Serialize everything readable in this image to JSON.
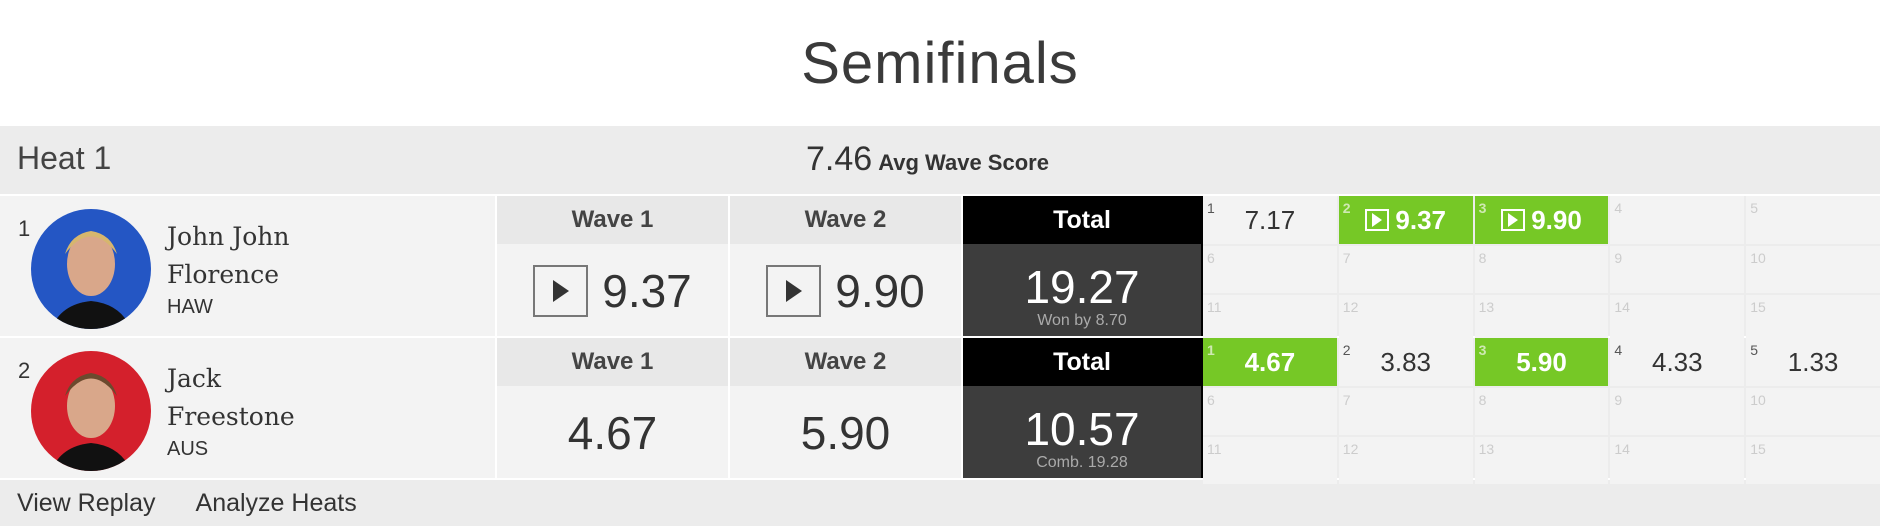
{
  "title": "Semifinals",
  "heat": {
    "name": "Heat 1",
    "avg_score": "7.46",
    "avg_label": "Avg Wave Score"
  },
  "colors": {
    "best_wave": "#76c826",
    "total_bg": "#3d3d3d",
    "athlete1_bg": "#2456c4",
    "athlete2_bg": "#d4202c"
  },
  "athletes": [
    {
      "rank": "1",
      "first": "John John",
      "last": "Florence",
      "country": "HAW",
      "avatar_color": "#2456c4",
      "waves": [
        {
          "label": "Wave 1",
          "score": "9.37",
          "replay": true
        },
        {
          "label": "Wave 2",
          "score": "9.90",
          "replay": true
        }
      ],
      "total_label": "Total",
      "total": "19.27",
      "sub": "Won by 8.70",
      "grid": [
        {
          "n": "1",
          "score": "7.17",
          "best": false,
          "replay": false
        },
        {
          "n": "2",
          "score": "9.37",
          "best": true,
          "replay": true
        },
        {
          "n": "3",
          "score": "9.90",
          "best": true,
          "replay": true
        },
        {
          "n": "4",
          "score": ""
        },
        {
          "n": "5",
          "score": ""
        },
        {
          "n": "6",
          "score": ""
        },
        {
          "n": "7",
          "score": ""
        },
        {
          "n": "8",
          "score": ""
        },
        {
          "n": "9",
          "score": ""
        },
        {
          "n": "10",
          "score": ""
        },
        {
          "n": "11",
          "score": ""
        },
        {
          "n": "12",
          "score": ""
        },
        {
          "n": "13",
          "score": ""
        },
        {
          "n": "14",
          "score": ""
        },
        {
          "n": "15",
          "score": ""
        }
      ]
    },
    {
      "rank": "2",
      "first": "Jack",
      "last": "Freestone",
      "country": "AUS",
      "avatar_color": "#d4202c",
      "waves": [
        {
          "label": "Wave 1",
          "score": "4.67",
          "replay": false
        },
        {
          "label": "Wave 2",
          "score": "5.90",
          "replay": false
        }
      ],
      "total_label": "Total",
      "total": "10.57",
      "sub": "Comb. 19.28",
      "grid": [
        {
          "n": "1",
          "score": "4.67",
          "best": true
        },
        {
          "n": "2",
          "score": "3.83",
          "best": false
        },
        {
          "n": "3",
          "score": "5.90",
          "best": true
        },
        {
          "n": "4",
          "score": "4.33",
          "best": false
        },
        {
          "n": "5",
          "score": "1.33",
          "best": false
        },
        {
          "n": "6",
          "score": ""
        },
        {
          "n": "7",
          "score": ""
        },
        {
          "n": "8",
          "score": ""
        },
        {
          "n": "9",
          "score": ""
        },
        {
          "n": "10",
          "score": ""
        },
        {
          "n": "11",
          "score": ""
        },
        {
          "n": "12",
          "score": ""
        },
        {
          "n": "13",
          "score": ""
        },
        {
          "n": "14",
          "score": ""
        },
        {
          "n": "15",
          "score": ""
        }
      ]
    }
  ],
  "footer": {
    "view_replay": "View Replay",
    "analyze": "Analyze Heats"
  }
}
